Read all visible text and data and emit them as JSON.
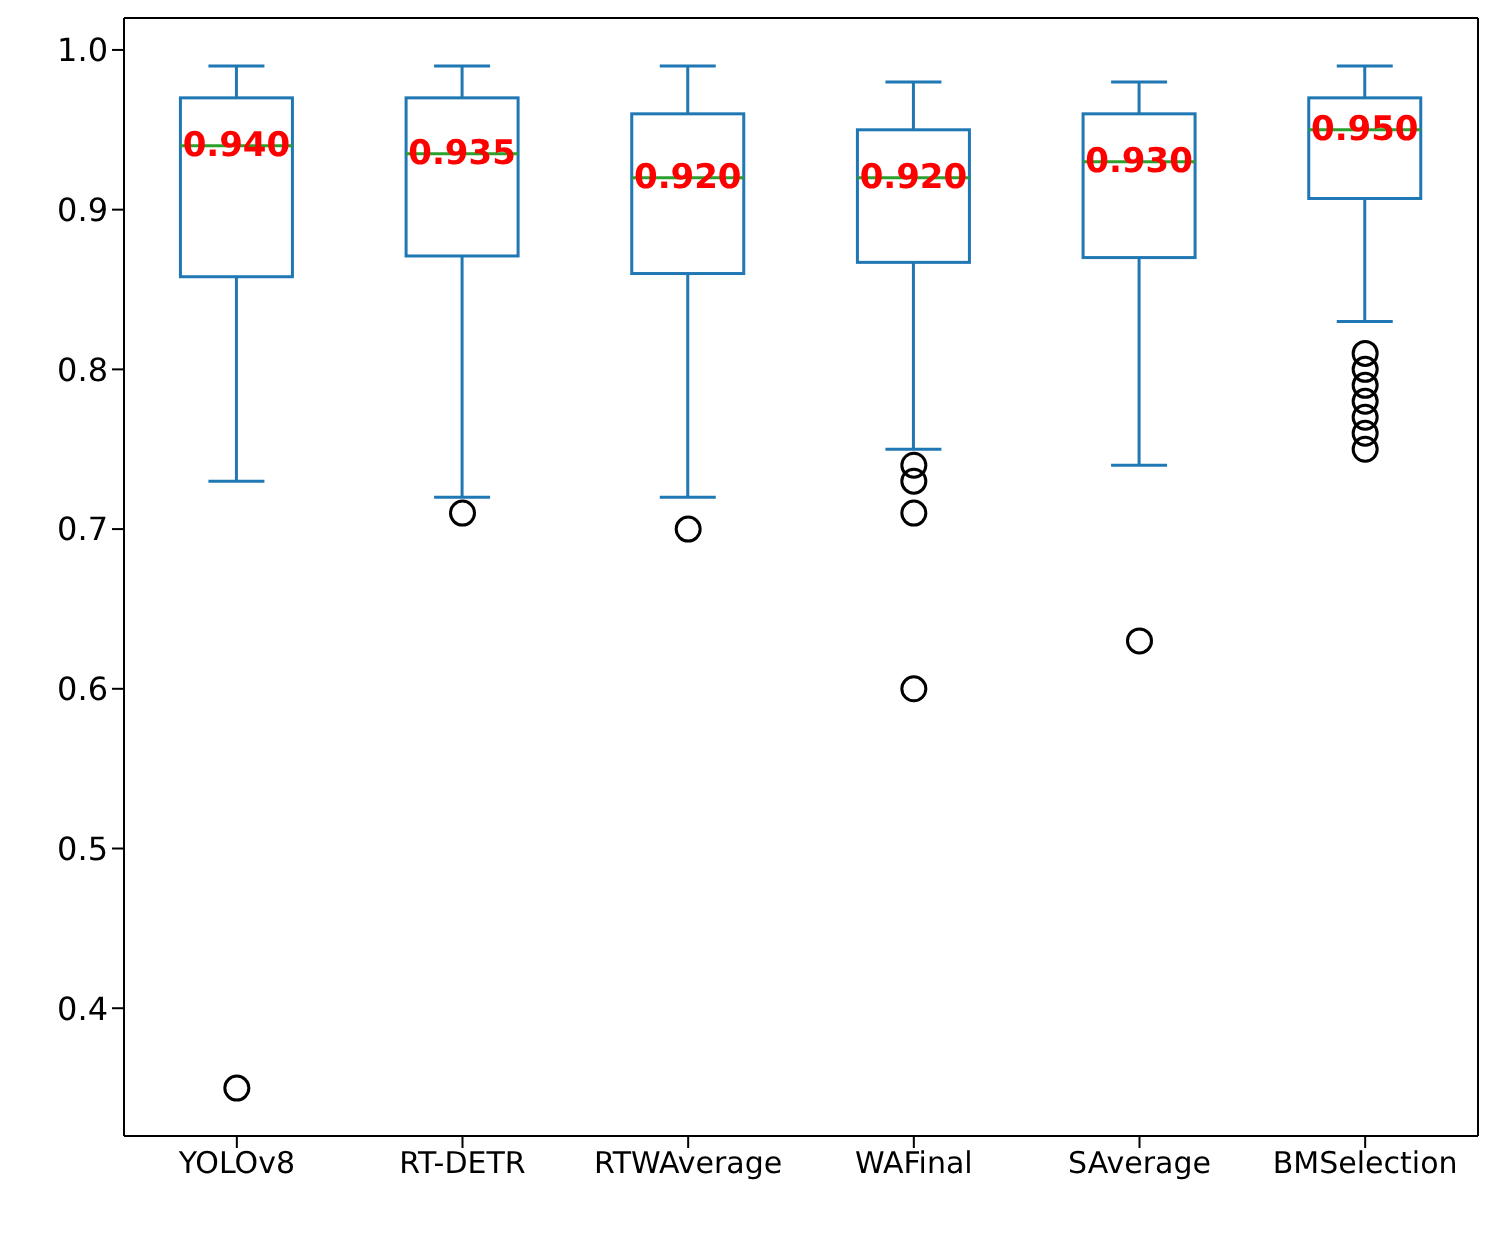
{
  "chart_data": {
    "type": "box",
    "categories": [
      "YOLOv8",
      "RT-DETR",
      "RTWAverage",
      "WAFinal",
      "SAverage",
      "BMSelection"
    ],
    "color": "#1f77b4",
    "boxes": [
      {
        "low": 0.73,
        "q1": 0.858,
        "median": 0.94,
        "q3": 0.97,
        "high": 0.99,
        "outliers": [
          0.35
        ]
      },
      {
        "low": 0.72,
        "q1": 0.871,
        "median": 0.935,
        "q3": 0.97,
        "high": 0.99,
        "outliers": [
          0.71
        ]
      },
      {
        "low": 0.72,
        "q1": 0.86,
        "median": 0.92,
        "q3": 0.96,
        "high": 0.99,
        "outliers": [
          0.7
        ]
      },
      {
        "low": 0.75,
        "q1": 0.867,
        "median": 0.92,
        "q3": 0.95,
        "high": 0.98,
        "outliers": [
          0.74,
          0.73,
          0.71,
          0.6
        ]
      },
      {
        "low": 0.74,
        "q1": 0.87,
        "median": 0.93,
        "q3": 0.96,
        "high": 0.98,
        "outliers": [
          0.63
        ]
      },
      {
        "low": 0.83,
        "q1": 0.907,
        "median": 0.95,
        "q3": 0.97,
        "high": 0.99,
        "outliers": [
          0.81,
          0.8,
          0.79,
          0.78,
          0.77,
          0.76,
          0.75
        ]
      }
    ],
    "value_labels": [
      "0.940",
      "0.935",
      "0.920",
      "0.920",
      "0.930",
      "0.950"
    ],
    "ylim": [
      0.32,
      1.02
    ],
    "yticks": [
      0.4,
      0.5,
      0.6,
      0.7,
      0.8,
      0.9,
      {
        "value": 1,
        "label": "1.0"
      }
    ],
    "grid": false,
    "legend": false
  }
}
